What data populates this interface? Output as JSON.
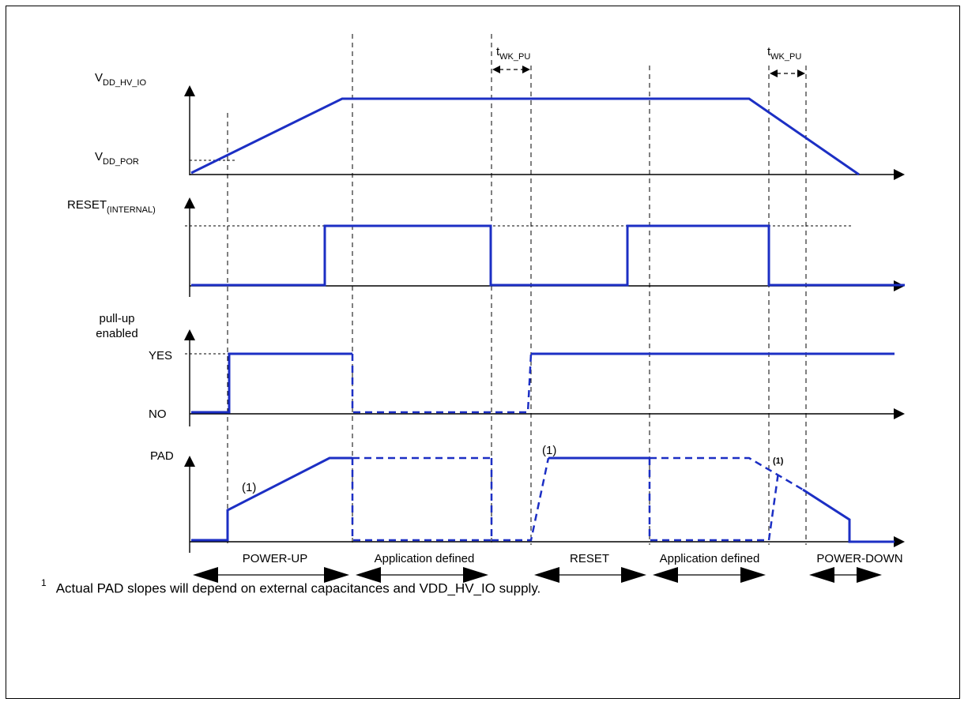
{
  "signals": {
    "vdd": {
      "main": "V",
      "sub": "DD_HV_IO"
    },
    "vdd_por": {
      "main": "V",
      "sub": "DD_POR"
    },
    "reset": {
      "main": "RESET",
      "sub": "(INTERNAL)"
    },
    "pullup_line1": "pull-up",
    "pullup_line2": "enabled",
    "yes": "YES",
    "no": "NO",
    "pad": "PAD"
  },
  "timing": {
    "twk_pu_main": "t",
    "twk_pu_sub": "WK_PU"
  },
  "notes": {
    "mark": "(1)"
  },
  "phases": [
    "POWER-UP",
    "Application defined",
    "RESET",
    "Application defined",
    "POWER-DOWN"
  ],
  "footnote": {
    "number": "1",
    "text": "Actual PAD slopes will depend on external capacitances and VDD_HV_IO supply."
  },
  "colors": {
    "signal": "#1c2fc4",
    "axis": "#000000"
  }
}
